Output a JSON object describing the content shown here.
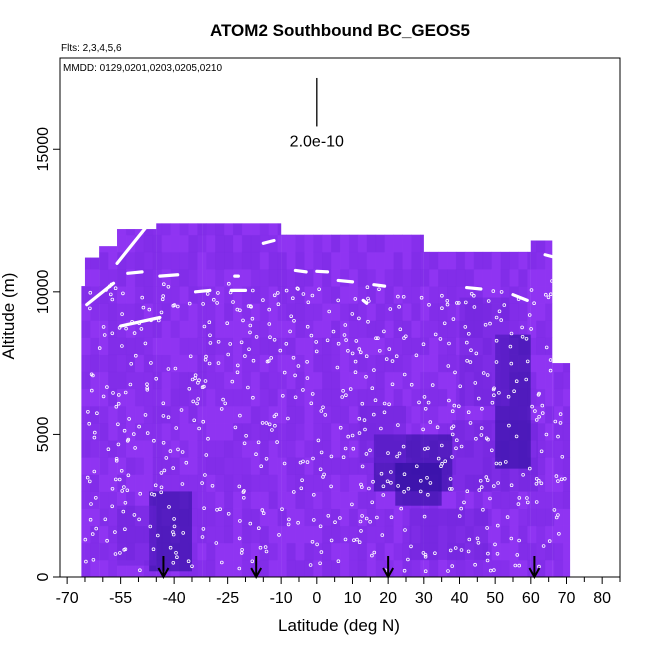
{
  "chart_data": {
    "type": "heatmap",
    "title": "ATOM2 Southbound BC_GEOS5",
    "subtitle_flights": "Flts: 2,3,4,5,6",
    "subtitle_dates": "MMDD: 0129,0201,0203,0205,0210",
    "xlabel": "Latitude (deg N)",
    "ylabel": "Altitude (m)",
    "xlim": [
      -72,
      85
    ],
    "ylim": [
      0,
      18200
    ],
    "x_ticks": [
      -70,
      -55,
      -40,
      -25,
      -10,
      0,
      10,
      20,
      30,
      40,
      50,
      60,
      70,
      80
    ],
    "x_tick_labels": [
      "-70",
      "-55",
      "-40",
      "-25",
      "-10",
      "0",
      "10",
      "20",
      "30",
      "40",
      "50",
      "60",
      "70",
      "80"
    ],
    "x_minor_ticks": [
      -65,
      -60,
      -50,
      -45,
      -35,
      -30,
      -20,
      -15,
      -5,
      5,
      15,
      25,
      35,
      45,
      55,
      65,
      75,
      85
    ],
    "y_ticks": [
      0,
      5000,
      10000,
      15000
    ],
    "y_tick_labels": [
      "0",
      "5000",
      "10000",
      "15000"
    ],
    "scale_bar": {
      "label": "2.0e-10",
      "x": 0,
      "y_bottom": 15800,
      "y_top": 17500
    },
    "arrows_latitude": [
      -43,
      -17,
      20,
      61
    ],
    "colors": {
      "background_field": "#8a2fef",
      "low": "#9a3cf8",
      "mid": "#6a24d8",
      "high": "#2e0fa0",
      "points": "#ffffff"
    },
    "field_extent": [
      {
        "x0": -66,
        "x1": -65,
        "ytop": 10200
      },
      {
        "x0": -65,
        "x1": -61,
        "ytop": 11200
      },
      {
        "x0": -61,
        "x1": -56,
        "ytop": 11600
      },
      {
        "x0": -56,
        "x1": -45,
        "ytop": 12200
      },
      {
        "x0": -45,
        "x1": -32,
        "ytop": 12400
      },
      {
        "x0": -32,
        "x1": -10,
        "ytop": 12400
      },
      {
        "x0": -10,
        "x1": 30,
        "ytop": 12000
      },
      {
        "x0": 30,
        "x1": 60,
        "ytop": 11400
      },
      {
        "x0": 60,
        "x1": 66,
        "ytop": 11800
      },
      {
        "x0": 66,
        "x1": 71,
        "ytop": 7500
      }
    ],
    "enhanced_regions": [
      {
        "x0": 16,
        "x1": 38,
        "y0": 3000,
        "y1": 5000,
        "level": "high"
      },
      {
        "x0": 22,
        "x1": 35,
        "y0": 2500,
        "y1": 4000,
        "level": "high"
      },
      {
        "x0": 12,
        "x1": 25,
        "y0": 4000,
        "y1": 6000,
        "level": "mid"
      },
      {
        "x0": 38,
        "x1": 62,
        "y0": 3000,
        "y1": 5500,
        "level": "mid"
      },
      {
        "x0": 50,
        "x1": 60,
        "y0": 3800,
        "y1": 8500,
        "level": "high"
      },
      {
        "x0": 40,
        "x1": 54,
        "y0": 6000,
        "y1": 9800,
        "level": "mid"
      },
      {
        "x0": -47,
        "x1": -35,
        "y0": 200,
        "y1": 3000,
        "level": "high"
      },
      {
        "x0": -56,
        "x1": -45,
        "y0": 400,
        "y1": 2500,
        "level": "mid"
      },
      {
        "x0": 26,
        "x1": 48,
        "y0": 600,
        "y1": 2400,
        "level": "mid"
      }
    ],
    "flight_tracks": [
      {
        "x0": -64.5,
        "y0": 9550,
        "x1": -57,
        "y1": 10300
      },
      {
        "x0": -56,
        "y0": 11000,
        "x1": -47,
        "y1": 12400
      },
      {
        "x0": -55,
        "y0": 8800,
        "x1": -44,
        "y1": 9100
      },
      {
        "x0": -53,
        "y0": 10650,
        "x1": -49,
        "y1": 10700
      },
      {
        "x0": -44,
        "y0": 10550,
        "x1": -39,
        "y1": 10600
      },
      {
        "x0": -34,
        "y0": 10000,
        "x1": -30,
        "y1": 10050
      },
      {
        "x0": -24,
        "y0": 10050,
        "x1": -20,
        "y1": 10050
      },
      {
        "x0": -15,
        "y0": 11700,
        "x1": -12,
        "y1": 11800
      },
      {
        "x0": -6,
        "y0": 10750,
        "x1": -3,
        "y1": 10700
      },
      {
        "x0": 0,
        "y0": 10720,
        "x1": 3,
        "y1": 10700
      },
      {
        "x0": 6,
        "y0": 10400,
        "x1": 10,
        "y1": 10350
      },
      {
        "x0": 16,
        "y0": 10250,
        "x1": 19,
        "y1": 10200
      },
      {
        "x0": 42,
        "y0": 10150,
        "x1": 46,
        "y1": 10100
      },
      {
        "x0": 55,
        "y0": 9900,
        "x1": 59,
        "y1": 9700
      },
      {
        "x0": 64,
        "y0": 11300,
        "x1": 70,
        "y1": 11100
      },
      {
        "x0": -23,
        "y0": 10550,
        "x1": -22,
        "y1": 10550
      },
      {
        "x0": 13,
        "y0": 9700,
        "x1": 14,
        "y1": 9600
      }
    ]
  }
}
